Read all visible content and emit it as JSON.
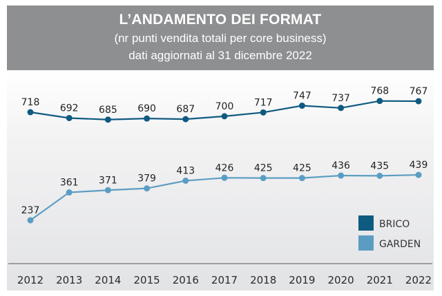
{
  "chart_data": {
    "type": "line",
    "title": "L’ANDAMENTO DEI FORMAT",
    "subtitle": "(nr punti vendita totali per core business)",
    "subtitle2": "dati aggiornati al 31 dicembre 2022",
    "xlabel": "",
    "ylabel": "",
    "x": [
      "2012",
      "2013",
      "2014",
      "2015",
      "2016",
      "2017",
      "2018",
      "2019",
      "2020",
      "2021",
      "2022"
    ],
    "series": [
      {
        "name": "BRICO",
        "color": "#0f5a80",
        "values": [
          718,
          692,
          685,
          690,
          687,
          700,
          717,
          747,
          737,
          768,
          767
        ]
      },
      {
        "name": "GARDEN",
        "color": "#5b9dc2",
        "values": [
          237,
          361,
          371,
          379,
          413,
          426,
          425,
          425,
          436,
          435,
          439
        ]
      }
    ],
    "ylim": [
      150,
      850
    ],
    "grid": false,
    "legend": "bottom-right"
  }
}
